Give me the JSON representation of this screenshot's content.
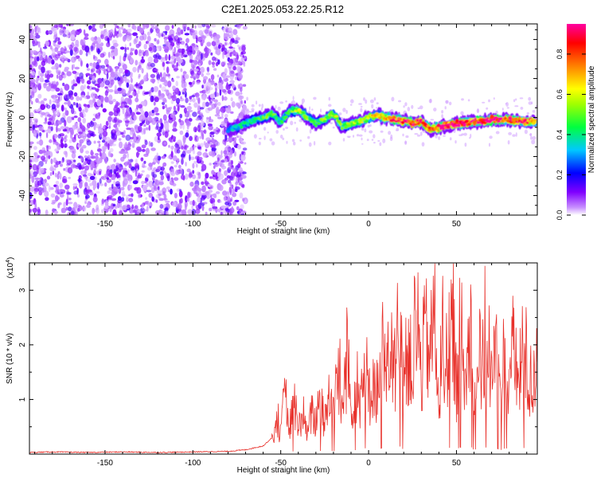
{
  "title": "C2E1.2025.053.22.25.R12",
  "chart_data": [
    {
      "type": "heatmap",
      "xlabel": "Height of straight line (km)",
      "ylabel": "Frequency (Hz)",
      "xlim": [
        -193,
        96
      ],
      "ylim": [
        -50,
        48
      ],
      "xticks": [
        -150,
        -100,
        -50,
        0,
        50
      ],
      "yticks": [
        -40,
        -20,
        0,
        20,
        40
      ],
      "colorbar": {
        "label": "Normalized spectral amplitude",
        "range": [
          0.0,
          0.95
        ],
        "ticks": [
          "0.0",
          "0.2",
          "0.4",
          "0.6",
          "0.8"
        ],
        "colors": [
          "#ffffff",
          "#8000ff",
          "#0000ff",
          "#00c8ff",
          "#00ff00",
          "#ffff00",
          "#ff8000",
          "#ff0040",
          "#ff00a0"
        ]
      },
      "noise_region_x": [
        -193,
        -73
      ],
      "ridge": {
        "x": [
          -80,
          -75,
          -70,
          -65,
          -60,
          -55,
          -50,
          -45,
          -40,
          -35,
          -30,
          -25,
          -20,
          -15,
          -10,
          -5,
          0,
          5,
          10,
          15,
          20,
          25,
          30,
          35,
          40,
          45,
          50,
          55,
          60,
          65,
          70,
          75,
          80,
          85,
          90,
          95
        ],
        "freq": [
          -6,
          -5,
          -3,
          -1,
          0,
          2,
          -2,
          3,
          4,
          0,
          -3,
          -1,
          2,
          -5,
          -3,
          -2,
          0,
          1,
          0,
          -1,
          -2,
          -3,
          -2,
          -6,
          -5,
          -4,
          -3,
          -3,
          -2,
          -2,
          -1,
          -1,
          -1,
          -2,
          -2,
          -2
        ],
        "amplitude": [
          0.3,
          0.35,
          0.4,
          0.4,
          0.45,
          0.5,
          0.4,
          0.45,
          0.55,
          0.5,
          0.45,
          0.5,
          0.6,
          0.45,
          0.5,
          0.55,
          0.6,
          0.7,
          0.75,
          0.8,
          0.85,
          0.9,
          0.85,
          0.8,
          0.85,
          0.9,
          0.95,
          0.9,
          0.85,
          0.9,
          0.95,
          0.9,
          0.85,
          0.9,
          0.8,
          0.75
        ]
      }
    },
    {
      "type": "line",
      "xlabel": "Height of straight line (km)",
      "ylabel": "SNR (10 * v/v)",
      "y_multiplier": "(x10",
      "y_multiplier_exp": "4",
      "y_multiplier_close": ")",
      "xlim": [
        -193,
        96
      ],
      "ylim": [
        0,
        3.5
      ],
      "xticks": [
        -150,
        -100,
        -50,
        0,
        50
      ],
      "yticks": [
        1,
        2,
        3
      ],
      "color": "#e8302a",
      "series": [
        {
          "x": [
            -193,
            -180,
            -160,
            -140,
            -120,
            -100,
            -80,
            -70,
            -60,
            -55,
            -52,
            -50,
            -48,
            -45,
            -42,
            -40,
            -38,
            -35,
            -32,
            -30,
            -28,
            -25,
            -22,
            -20,
            -18,
            -15,
            -12,
            -10,
            -8,
            -5,
            -2,
            0,
            2,
            5,
            8,
            10,
            12,
            15,
            18,
            20,
            22,
            25,
            28,
            30,
            32,
            35,
            37,
            38,
            40,
            42,
            45,
            48,
            50,
            52,
            55,
            58,
            60,
            62,
            65,
            68,
            70,
            72,
            75,
            78,
            80,
            82,
            85,
            88,
            90,
            92,
            95
          ],
          "y": [
            0.03,
            0.04,
            0.03,
            0.04,
            0.03,
            0.04,
            0.05,
            0.08,
            0.15,
            0.3,
            0.9,
            0.4,
            1.3,
            0.6,
            1.2,
            0.5,
            1.0,
            0.4,
            1.0,
            0.6,
            1.3,
            0.7,
            1.5,
            0.9,
            2.0,
            1.0,
            2.3,
            0.9,
            1.5,
            1.2,
            2.2,
            1.0,
            1.8,
            1.4,
            2.4,
            1.5,
            2.4,
            1.6,
            2.8,
            1.5,
            2.5,
            1.8,
            3.0,
            1.7,
            2.8,
            2.2,
            3.1,
            3.45,
            1.0,
            2.8,
            1.8,
            3.15,
            1.5,
            2.6,
            1.5,
            3.0,
            1.4,
            2.2,
            2.1,
            2.6,
            1.6,
            2.5,
            1.4,
            2.2,
            1.7,
            2.4,
            1.5,
            2.3,
            1.9,
            1.4,
            2.0
          ]
        }
      ]
    }
  ]
}
